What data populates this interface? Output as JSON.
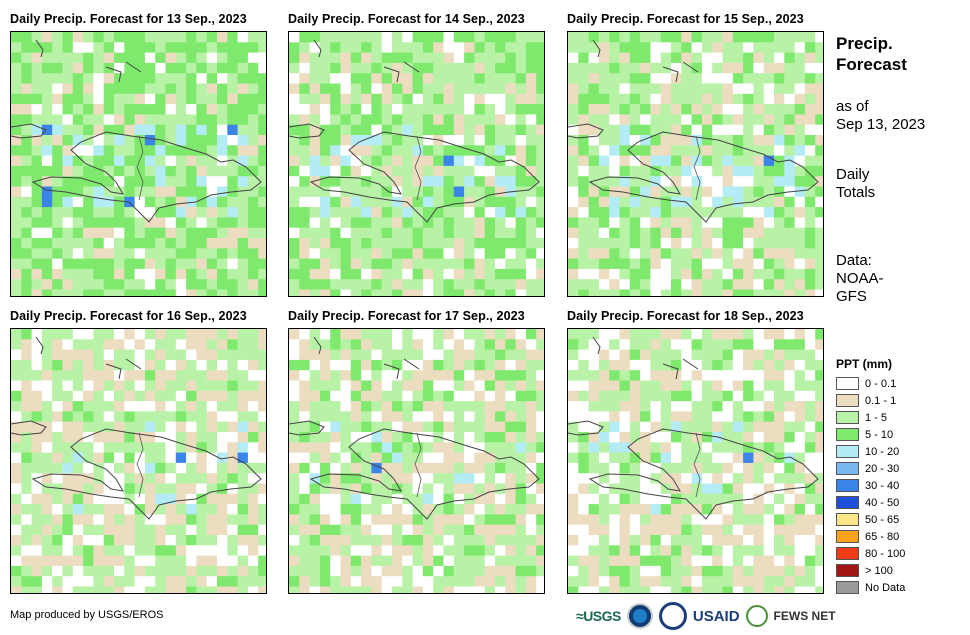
{
  "panels": [
    {
      "title": "Daily Precip. Forecast for 13 Sep., 2023"
    },
    {
      "title": "Daily Precip. Forecast for 14 Sep., 2023"
    },
    {
      "title": "Daily Precip. Forecast for 15 Sep., 2023"
    },
    {
      "title": "Daily Precip. Forecast for 16 Sep., 2023"
    },
    {
      "title": "Daily Precip. Forecast for 17 Sep., 2023"
    },
    {
      "title": "Daily Precip. Forecast for 18 Sep., 2023"
    }
  ],
  "side": {
    "title_line1": "Precip.",
    "title_line2": "Forecast",
    "asof_line1": "as of",
    "asof_line2": "Sep 13, 2023",
    "totals_line1": "Daily",
    "totals_line2": "Totals",
    "data_line1": "Data:",
    "data_line2": "NOAA-",
    "data_line3": "GFS"
  },
  "legend": {
    "title": "PPT (mm)",
    "items": [
      {
        "label": "0 - 0.1",
        "color": "#ffffff"
      },
      {
        "label": "0.1 - 1",
        "color": "#ecdcc0"
      },
      {
        "label": "1 - 5",
        "color": "#b8f2a6"
      },
      {
        "label": "5 - 10",
        "color": "#7fe96d"
      },
      {
        "label": "10 - 20",
        "color": "#b3ecf4"
      },
      {
        "label": "20 - 30",
        "color": "#7ab7f0"
      },
      {
        "label": "30 - 40",
        "color": "#3b84ea"
      },
      {
        "label": "40 - 50",
        "color": "#1f4fd8"
      },
      {
        "label": "50 - 65",
        "color": "#fde68a"
      },
      {
        "label": "65 - 80",
        "color": "#f9a31a"
      },
      {
        "label": "80 - 100",
        "color": "#ee3d16"
      },
      {
        "label": "> 100",
        "color": "#a31616"
      },
      {
        "label": "No Data",
        "color": "#999999"
      }
    ]
  },
  "footer": {
    "credit": "Map produced by USGS/EROS",
    "logo_usgs": "USGS",
    "logo_usaid": "USAID",
    "logo_fews": "FEWS NET"
  }
}
